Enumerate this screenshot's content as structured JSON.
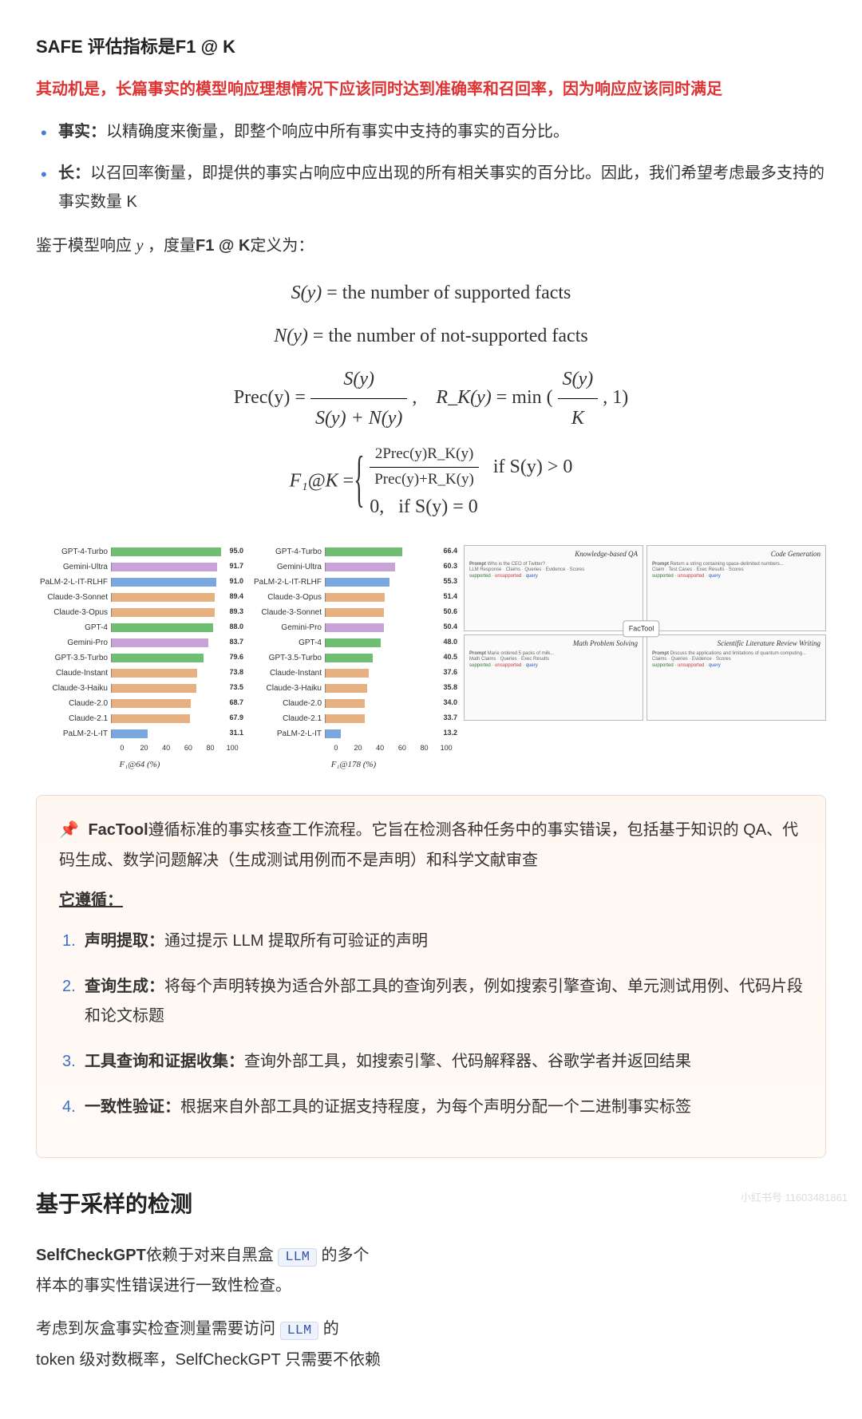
{
  "heading": "SAFE 评估指标是F1 @ K",
  "intro_red": "其动机是，长篇事实的模型响应理想情况下应该同时达到准确率和召回率，因为响应应该同时满足",
  "bullets": [
    {
      "lead": "事实：",
      "text": "以精确度来衡量，即整个响应中所有事实中支持的事实的百分比。"
    },
    {
      "lead": "长：",
      "text": "以召回率衡量，即提供的事实占响应中应出现的所有相关事实的百分比。因此，我们希望考虑最多支持的事实数量 K"
    }
  ],
  "given_prefix": "鉴于模型响应 ",
  "given_var": "y",
  "given_mid": " ，度量",
  "given_bold": "F1 @ K",
  "given_suffix": "定义为：",
  "math": {
    "S_lhs": "S(y)",
    "S_rhs": "the number of supported facts",
    "N_lhs": "N(y)",
    "N_rhs": "the number of not-supported facts",
    "Prec_lhs": "Prec(y)",
    "Prec_num": "S(y)",
    "Prec_den": "S(y) + N(y)",
    "R_lhs": "R_K(y)",
    "R_min_arg_num": "S(y)",
    "R_min_arg_den": "K",
    "R_min_one": "1",
    "F1_lhs": "F₁@K",
    "F1_case1_num": "2Prec(y)R_K(y)",
    "F1_case1_den": "Prec(y)+R_K(y)",
    "F1_case1_cond": "if S(y) > 0",
    "F1_case2_val": "0,",
    "F1_case2_cond": "if S(y) = 0"
  },
  "chart1": {
    "caption": "F₁@64 (%)",
    "axis": [
      "0",
      "20",
      "40",
      "60",
      "80",
      "100"
    ],
    "rows": [
      {
        "label": "GPT-4-Turbo",
        "val": 95.0,
        "color": "#6fbf73"
      },
      {
        "label": "Gemini-Ultra",
        "val": 91.7,
        "color": "#c7a3d8"
      },
      {
        "label": "PaLM-2-L-IT-RLHF",
        "val": 91.0,
        "color": "#7aa7e0"
      },
      {
        "label": "Claude-3-Sonnet",
        "val": 89.4,
        "color": "#e6b080"
      },
      {
        "label": "Claude-3-Opus",
        "val": 89.3,
        "color": "#e6b080"
      },
      {
        "label": "GPT-4",
        "val": 88.0,
        "color": "#6fbf73"
      },
      {
        "label": "Gemini-Pro",
        "val": 83.7,
        "color": "#c7a3d8"
      },
      {
        "label": "GPT-3.5-Turbo",
        "val": 79.6,
        "color": "#6fbf73"
      },
      {
        "label": "Claude-Instant",
        "val": 73.8,
        "color": "#e6b080"
      },
      {
        "label": "Claude-3-Haiku",
        "val": 73.5,
        "color": "#e6b080"
      },
      {
        "label": "Claude-2.0",
        "val": 68.7,
        "color": "#e6b080"
      },
      {
        "label": "Claude-2.1",
        "val": 67.9,
        "color": "#e6b080"
      },
      {
        "label": "PaLM-2-L-IT",
        "val": 31.1,
        "color": "#7aa7e0"
      }
    ]
  },
  "chart2": {
    "caption": "F₁@178 (%)",
    "axis": [
      "0",
      "20",
      "40",
      "60",
      "80",
      "100"
    ],
    "rows": [
      {
        "label": "GPT-4-Turbo",
        "val": 66.4,
        "color": "#6fbf73"
      },
      {
        "label": "Gemini-Ultra",
        "val": 60.3,
        "color": "#c7a3d8"
      },
      {
        "label": "PaLM-2-L-IT-RLHF",
        "val": 55.3,
        "color": "#7aa7e0"
      },
      {
        "label": "Claude-3-Opus",
        "val": 51.4,
        "color": "#e6b080"
      },
      {
        "label": "Claude-3-Sonnet",
        "val": 50.6,
        "color": "#e6b080"
      },
      {
        "label": "Gemini-Pro",
        "val": 50.4,
        "color": "#c7a3d8"
      },
      {
        "label": "GPT-4",
        "val": 48.0,
        "color": "#6fbf73"
      },
      {
        "label": "GPT-3.5-Turbo",
        "val": 40.5,
        "color": "#6fbf73"
      },
      {
        "label": "Claude-Instant",
        "val": 37.6,
        "color": "#e6b080"
      },
      {
        "label": "Claude-3-Haiku",
        "val": 35.8,
        "color": "#e6b080"
      },
      {
        "label": "Claude-2.0",
        "val": 34.0,
        "color": "#e6b080"
      },
      {
        "label": "Claude-2.1",
        "val": 33.7,
        "color": "#e6b080"
      },
      {
        "label": "PaLM-2-L-IT",
        "val": 13.2,
        "color": "#7aa7e0"
      }
    ]
  },
  "diagram": {
    "panels": [
      {
        "title": "Knowledge-based QA",
        "prompt": "Who is the CEO of Twitter?",
        "body": "LLM Response · Claims · Queries · Evidence · Scores"
      },
      {
        "title": "Code Generation",
        "prompt": "Return a string containing space-delimited numbers...",
        "body": "Claim · Test Cases · Exec Results · Scores"
      },
      {
        "title": "Math Problem Solving",
        "prompt": "Marie ordered 5 packs of milk...",
        "body": "Math Claims · Queries · Exec Results"
      },
      {
        "title": "Scientific Literature Review Writing",
        "prompt": "Discuss the applications and limitations of quantum computing...",
        "body": "Claims · Queries · Evidence · Scores"
      }
    ],
    "center_label": "FacTool"
  },
  "callout": {
    "lead_bold": "FacTool",
    "lead_text": "遵循标准的事实核查工作流程。它旨在检测各种任务中的事实错误，包括基于知识的 QA、代码生成、数学问题解决（生成测试用例而不是声明）和科学文献审查",
    "follows": "它遵循：",
    "steps": [
      {
        "num": "1.",
        "lead": "声明提取：",
        "text": "通过提示 LLM 提取所有可验证的声明"
      },
      {
        "num": "2.",
        "lead": "查询生成：",
        "text": "将每个声明转换为适合外部工具的查询列表，例如搜索引擎查询、单元测试用例、代码片段和论文标题"
      },
      {
        "num": "3.",
        "lead": "工具查询和证据收集：",
        "text": "查询外部工具，如搜索引擎、代码解释器、谷歌学者并返回结果"
      },
      {
        "num": "4.",
        "lead": "一致性验证：",
        "text": "根据来自外部工具的证据支持程度，为每个声明分配一个二进制事实标签"
      }
    ]
  },
  "section2_title": "基于采样的检测",
  "selfcheck": {
    "bold": "SelfCheckGPT",
    "line1_a": "依赖于对来自黑盒 ",
    "llm": "LLM",
    "line1_b": " 的多个",
    "line2": "样本的事实性错误进行一致性检查。",
    "line3_a": "考虑到灰盒事实检查测量需要访问 ",
    "line3_b": " 的",
    "line4": "token 级对数概率，SelfCheckGPT 只需要不依赖"
  },
  "watermark": "小红书号 11603481861"
}
